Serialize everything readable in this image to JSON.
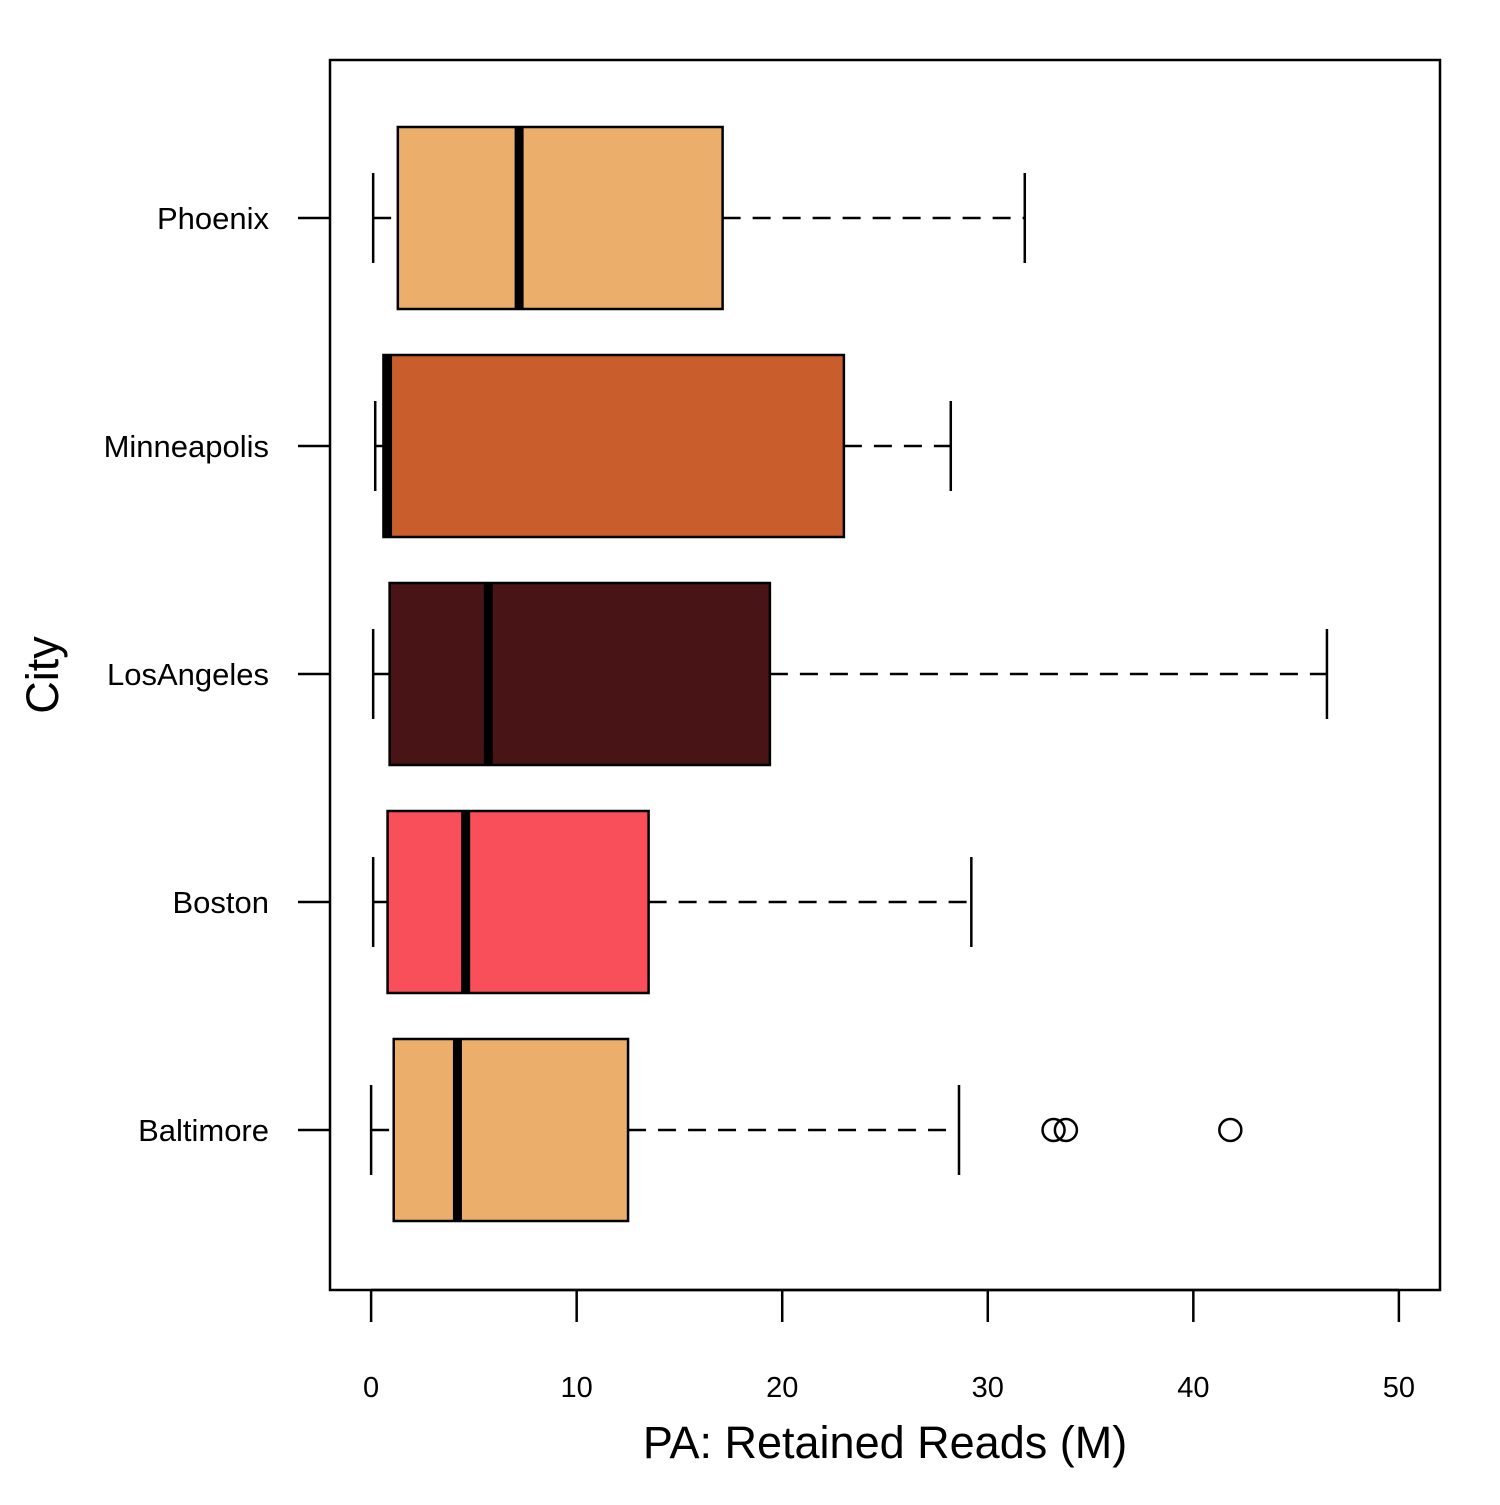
{
  "chart_data": {
    "type": "boxplot",
    "orientation": "horizontal",
    "xlabel": "PA: Retained Reads (M)",
    "ylabel": "City",
    "xlim": [
      -2,
      52
    ],
    "xticks": [
      0,
      10,
      20,
      30,
      40,
      50
    ],
    "categories": [
      "Baltimore",
      "Boston",
      "LosAngeles",
      "Minneapolis",
      "Phoenix"
    ],
    "boxes": [
      {
        "category": "Baltimore",
        "color": "#EBAE6B",
        "whisker_low": 0.0,
        "q1": 1.1,
        "median": 4.2,
        "q3": 12.5,
        "whisker_high": 28.6,
        "outliers": [
          33.2,
          33.8,
          41.8
        ]
      },
      {
        "category": "Boston",
        "color": "#F94F5A",
        "whisker_low": 0.1,
        "q1": 0.8,
        "median": 4.6,
        "q3": 13.5,
        "whisker_high": 29.2,
        "outliers": []
      },
      {
        "category": "LosAngeles",
        "color": "#491415",
        "whisker_low": 0.1,
        "q1": 0.9,
        "median": 5.7,
        "q3": 19.4,
        "whisker_high": 46.5,
        "outliers": []
      },
      {
        "category": "Minneapolis",
        "color": "#C95E2C",
        "whisker_low": 0.2,
        "q1": 0.6,
        "median": 0.8,
        "q3": 23.0,
        "whisker_high": 28.2,
        "outliers": []
      },
      {
        "category": "Phoenix",
        "color": "#EBAE6B",
        "whisker_low": 0.1,
        "q1": 1.3,
        "median": 7.2,
        "q3": 17.1,
        "whisker_high": 31.8,
        "outliers": []
      }
    ],
    "grid": false,
    "legend": "none"
  }
}
